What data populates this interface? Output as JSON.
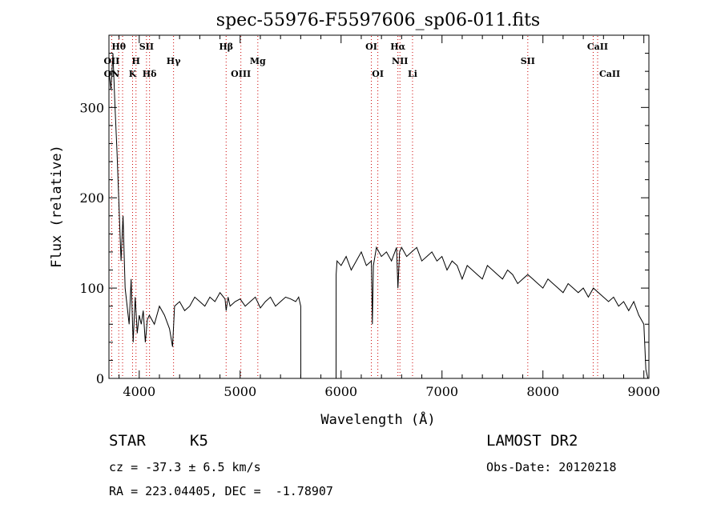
{
  "chart_data": {
    "type": "line",
    "title": "spec-55976-F5597606_sp06-011.fits",
    "xlabel": "Wavelength (Å)",
    "ylabel": "Flux (relative)",
    "xlim": [
      3700,
      9050
    ],
    "ylim": [
      0,
      380
    ],
    "xticks": [
      4000,
      5000,
      6000,
      7000,
      8000,
      9000
    ],
    "yticks": [
      0,
      100,
      200,
      300
    ],
    "grid": false,
    "line_color": "#000000",
    "marker_color": "#cc0000",
    "series": [
      {
        "x": [
          3700,
          3720,
          3740,
          3760,
          3780,
          3800,
          3820,
          3840,
          3860,
          3880,
          3900,
          3920,
          3940,
          3960,
          3980,
          4000,
          4020,
          4040,
          4060,
          4080,
          4100,
          4150,
          4200,
          4250,
          4300,
          4330,
          4350,
          4400,
          4450,
          4500,
          4550,
          4600,
          4650,
          4700,
          4750,
          4800,
          4850,
          4861,
          4880,
          4900,
          4950,
          5000,
          5050,
          5100,
          5150,
          5200,
          5250,
          5300,
          5350,
          5400,
          5450,
          5500,
          5550,
          5580,
          5600,
          5601,
          5950,
          5951,
          5960,
          6000,
          6050,
          6100,
          6150,
          6200,
          6250,
          6300,
          6310,
          6320,
          6350,
          6400,
          6450,
          6500,
          6550,
          6563,
          6580,
          6600,
          6650,
          6700,
          6750,
          6800,
          6850,
          6900,
          6950,
          7000,
          7050,
          7100,
          7150,
          7200,
          7250,
          7300,
          7350,
          7400,
          7450,
          7500,
          7550,
          7600,
          7650,
          7700,
          7750,
          7800,
          7850,
          7900,
          7950,
          8000,
          8050,
          8100,
          8150,
          8200,
          8250,
          8300,
          8350,
          8400,
          8450,
          8500,
          8550,
          8600,
          8650,
          8700,
          8750,
          8800,
          8850,
          8900,
          8950,
          9000,
          9020,
          9040
        ],
        "y": [
          340,
          320,
          360,
          300,
          250,
          190,
          130,
          180,
          100,
          80,
          60,
          110,
          40,
          90,
          50,
          70,
          60,
          75,
          40,
          65,
          70,
          60,
          80,
          70,
          55,
          35,
          80,
          85,
          75,
          80,
          90,
          85,
          80,
          90,
          85,
          95,
          88,
          75,
          90,
          80,
          85,
          88,
          80,
          85,
          90,
          78,
          85,
          90,
          80,
          85,
          90,
          88,
          85,
          90,
          80,
          0,
          0,
          115,
          130,
          125,
          135,
          120,
          130,
          140,
          125,
          130,
          60,
          125,
          145,
          135,
          140,
          130,
          145,
          100,
          140,
          145,
          135,
          140,
          145,
          130,
          135,
          140,
          130,
          135,
          120,
          130,
          125,
          110,
          125,
          120,
          115,
          110,
          125,
          120,
          115,
          110,
          120,
          115,
          105,
          110,
          115,
          110,
          105,
          100,
          110,
          105,
          100,
          95,
          105,
          100,
          95,
          100,
          90,
          100,
          95,
          90,
          85,
          90,
          80,
          85,
          75,
          85,
          70,
          60,
          10,
          0
        ]
      }
    ],
    "annotations": [
      {
        "label": "Hθ",
        "x": 3797,
        "row": 1
      },
      {
        "label": "OII",
        "x": 3727,
        "row": 2
      },
      {
        "label": "ON",
        "x": 3727,
        "row": 3
      },
      {
        "label": "SII",
        "x": 4072,
        "row": 1
      },
      {
        "label": "H",
        "x": 3968,
        "row": 2
      },
      {
        "label": "K",
        "x": 3934,
        "row": 3
      },
      {
        "label": "Hδ",
        "x": 4102,
        "row": 3
      },
      {
        "label": "Hγ",
        "x": 4340,
        "row": 2
      },
      {
        "label": "Hβ",
        "x": 4861,
        "row": 1
      },
      {
        "label": "Mg",
        "x": 5175,
        "row": 2
      },
      {
        "label": "OIII",
        "x": 5007,
        "row": 3
      },
      {
        "label": "OI",
        "x": 6300,
        "row": 1
      },
      {
        "label": "OI",
        "x": 6364,
        "row": 3
      },
      {
        "label": "Hα",
        "x": 6563,
        "row": 1
      },
      {
        "label": "NII",
        "x": 6583,
        "row": 2
      },
      {
        "label": "Li",
        "x": 6708,
        "row": 3
      },
      {
        "label": "SII",
        "x": 7850,
        "row": 2
      },
      {
        "label": "CaII",
        "x": 8542,
        "row": 1
      },
      {
        "label": "CaII",
        "x": 8662,
        "row": 3
      }
    ],
    "marker_lines": [
      3727,
      3797,
      3835,
      3934,
      3968,
      4072,
      4102,
      4340,
      4861,
      5007,
      5175,
      6300,
      6364,
      6563,
      6583,
      6708,
      7850,
      8498,
      8542
    ]
  },
  "info": {
    "class_label": "STAR",
    "subclass_label": "K5",
    "survey": "LAMOST DR2",
    "redshift": "cz = -37.3 ± 6.5 km/s",
    "obs_date": "Obs-Date: 20120218",
    "coords": "RA = 223.04405, DEC =  -1.78907"
  }
}
